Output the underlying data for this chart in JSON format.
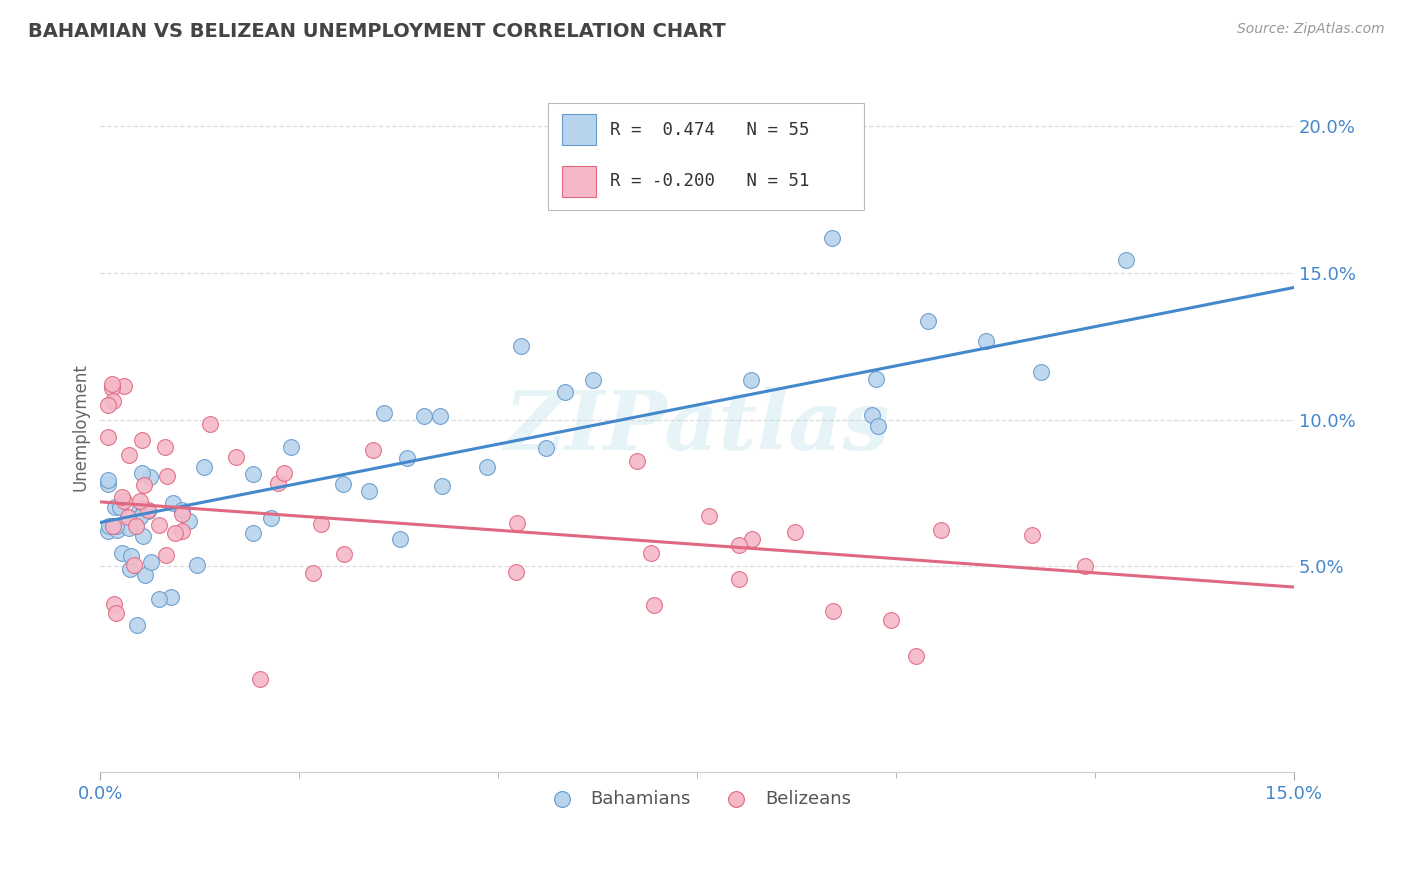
{
  "title": "BAHAMIAN VS BELIZEAN UNEMPLOYMENT CORRELATION CHART",
  "source_text": "Source: ZipAtlas.com",
  "ylabel": "Unemployment",
  "xlim": [
    0.0,
    0.15
  ],
  "ylim": [
    -0.02,
    0.215
  ],
  "xtick_major": [
    0.0,
    0.15
  ],
  "xtick_major_labels": [
    "0.0%",
    "15.0%"
  ],
  "xtick_minor": [
    0.025,
    0.05,
    0.075,
    0.1,
    0.125
  ],
  "ytick_vals": [
    0.05,
    0.1,
    0.15,
    0.2
  ],
  "ytick_labels": [
    "5.0%",
    "10.0%",
    "15.0%",
    "20.0%"
  ],
  "bahamians_color": "#b8d4ed",
  "belizeans_color": "#f5b8c8",
  "bahamians_edge": "#6699cc",
  "belizeans_edge": "#e06880",
  "line_blue": "#4488cc",
  "line_pink": "#e06880",
  "R_bahamians": 0.474,
  "N_bahamians": 55,
  "R_belizeans": -0.2,
  "N_belizeans": 51,
  "watermark": "ZIPatlas",
  "grid_color": "#dddddd",
  "title_color": "#444444",
  "ytick_color": "#4488cc",
  "xtick_color": "#4488cc"
}
